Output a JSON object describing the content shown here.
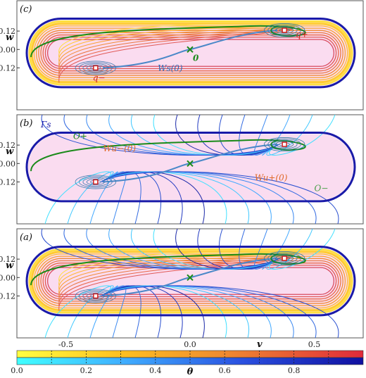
{
  "panels": [
    {
      "id": "c",
      "tag": "(c)",
      "labels": {
        "zero": "0",
        "ws": "W",
        "ws_sup": "s",
        "ws_arg": "(0)",
        "qplus": "q",
        "qplus_sub": "+",
        "qminus": "q",
        "qminus_sub": "−"
      }
    },
    {
      "id": "b",
      "tag": "(b)",
      "labels": {
        "gamma": "Γ",
        "gamma_sup": "s",
        "oplus": "O",
        "oplus_sub": "+",
        "ominus": "O",
        "ominus_sub": "−",
        "wu_minus": "W",
        "wu_minus_sup": "u",
        "wu_minus_sub": "−",
        "wu_minus_arg": "(0)",
        "wu_plus": "W",
        "wu_plus_sup": "u",
        "wu_plus_sub": "+",
        "wu_plus_arg": "(0)"
      }
    },
    {
      "id": "a",
      "tag": "(a)",
      "labels": {}
    }
  ],
  "axes": {
    "ylabel": "w",
    "xlabel": "v",
    "yticks": [
      "0.12",
      "0.00",
      "-0.12"
    ],
    "xticks": [
      "-0.5",
      "0.0",
      "0.5"
    ]
  },
  "colorbar": {
    "label": "θ",
    "ticks": [
      "0.0",
      "0.2",
      "0.4",
      "0.6",
      "0.8"
    ],
    "top_colors": [
      "#ffff00",
      "#ffb000",
      "#f08030",
      "#e83030"
    ],
    "bottom_colors": [
      "#00ffff",
      "#3080ff",
      "#2030c0",
      "#0000a0"
    ]
  },
  "colors": {
    "boundary": "#1a1aa8",
    "green": "#1a8a1a",
    "fill": "#fadcf0",
    "seam": "#e06a2a"
  }
}
